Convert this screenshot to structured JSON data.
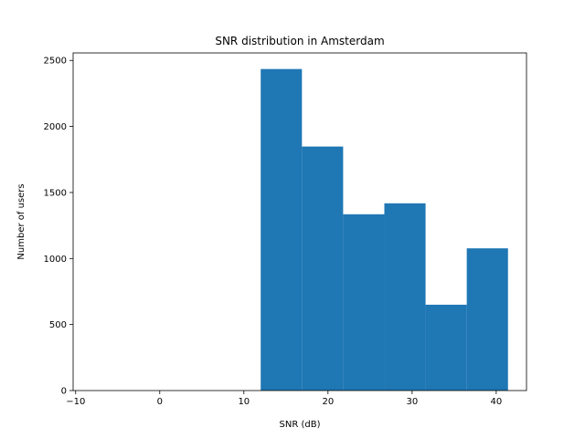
{
  "chart_data": {
    "type": "bar",
    "title": "SNR distribution in Amsterdam",
    "xlabel": "SNR (dB)",
    "ylabel": "Number of users",
    "bins": [
      {
        "start": 12.0,
        "end": 16.9,
        "count": 2435
      },
      {
        "start": 16.9,
        "end": 21.8,
        "count": 1848
      },
      {
        "start": 21.8,
        "end": 26.7,
        "count": 1335
      },
      {
        "start": 26.7,
        "end": 31.6,
        "count": 1418
      },
      {
        "start": 31.6,
        "end": 36.5,
        "count": 650
      },
      {
        "start": 36.5,
        "end": 41.4,
        "count": 1077
      }
    ],
    "xlim": [
      -10.3,
      43.6
    ],
    "ylim": [
      0,
      2557
    ],
    "xticks": [
      -10,
      0,
      10,
      20,
      30,
      40
    ],
    "xtick_labels": [
      "−10",
      "0",
      "10",
      "20",
      "30",
      "40"
    ],
    "yticks": [
      0,
      500,
      1000,
      1500,
      2000,
      2500
    ],
    "ytick_labels": [
      "0",
      "500",
      "1000",
      "1500",
      "2000",
      "2500"
    ],
    "bar_color": "#1f77b4",
    "grid": false,
    "legend": false
  }
}
